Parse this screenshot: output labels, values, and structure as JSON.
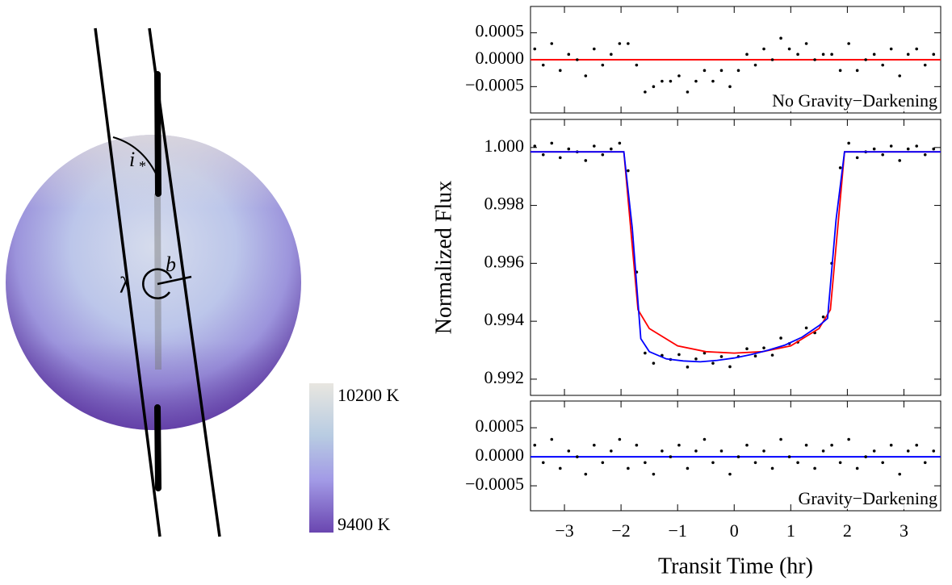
{
  "chart_data": [
    {
      "type": "scatter",
      "xlim": [
        -3.6,
        3.65
      ],
      "ylim": [
        -0.00099,
        0.00099
      ],
      "yticks": [
        0.0005,
        {
          "value": 0,
          "label": "0.0000"
        },
        {
          "value": -0.0005,
          "label": "−0.0005"
        }
      ],
      "annotation": "No Gravity−Darkening",
      "color": "#000000",
      "reference_line": {
        "value": 0,
        "color": "#ff0000"
      },
      "x": [
        -3.525,
        -3.375,
        -3.225,
        -3.075,
        -2.925,
        -2.775,
        -2.625,
        -2.475,
        -2.325,
        -2.175,
        -2.025,
        -1.875,
        -1.725,
        -1.575,
        -1.425,
        -1.275,
        -1.125,
        -0.975,
        -0.825,
        -0.675,
        -0.525,
        -0.375,
        -0.225,
        -0.075,
        0.075,
        0.225,
        0.375,
        0.525,
        0.675,
        0.825,
        0.975,
        1.125,
        1.275,
        1.425,
        1.575,
        1.725,
        1.875,
        2.025,
        2.175,
        2.325,
        2.475,
        2.625,
        2.775,
        2.925,
        3.075,
        3.225,
        3.375,
        3.525
      ],
      "values": [
        0.0002,
        -0.0001,
        0.0003,
        -0.0002,
        0.0001,
        0,
        -0.0003,
        0.0002,
        -0.0001,
        0.0001,
        0.0003,
        0.0003,
        -0.0001,
        -0.0006,
        -0.0005,
        -0.0004,
        -0.0004,
        -0.0003,
        -0.0006,
        -0.0004,
        -0.0002,
        -0.0004,
        -0.0002,
        -0.0005,
        -0.0002,
        0.0001,
        -0.0001,
        0.0002,
        0,
        0.0004,
        0.0002,
        0.0001,
        0.0003,
        0,
        0.0001,
        0.0001,
        -0.0002,
        0.0003,
        -0.0002,
        0,
        0.0001,
        -0.0001,
        0.0002,
        -0.0003,
        0.0001,
        0.0002,
        -0.0001,
        0.0001
      ]
    },
    {
      "type": "scatter",
      "xlim": [
        -3.6,
        3.65
      ],
      "ylim": [
        0.99144,
        1.00097
      ],
      "yticks": [
        {
          "value": 1,
          "label": "1.000"
        },
        0.998,
        0.996,
        0.994,
        0.992
      ],
      "y_label": "Normalized Flux",
      "color": "#000000",
      "x": [
        -3.525,
        -3.375,
        -3.225,
        -3.075,
        -2.925,
        -2.775,
        -2.625,
        -2.475,
        -2.325,
        -2.175,
        -2.025,
        -1.875,
        -1.725,
        -1.575,
        -1.425,
        -1.275,
        -1.125,
        -0.975,
        -0.825,
        -0.675,
        -0.525,
        -0.375,
        -0.225,
        -0.075,
        0.075,
        0.225,
        0.375,
        0.525,
        0.675,
        0.825,
        0.975,
        1.125,
        1.275,
        1.425,
        1.575,
        1.725,
        1.875,
        2.025,
        2.175,
        2.325,
        2.475,
        2.625,
        2.775,
        2.925,
        3.075,
        3.225,
        3.375,
        3.525
      ],
      "values": [
        1.00005,
        0.99975,
        1.00015,
        0.99965,
        0.99995,
        0.99985,
        0.99955,
        1.00005,
        0.99975,
        0.99995,
        1.00015,
        0.9992,
        0.9957,
        0.9929,
        0.99255,
        0.99282,
        0.99268,
        0.99285,
        0.99242,
        0.9927,
        0.9929,
        0.99255,
        0.99278,
        0.99243,
        0.99278,
        0.99305,
        0.9928,
        0.99308,
        0.99283,
        0.99342,
        0.99323,
        0.99328,
        0.99377,
        0.9936,
        0.99415,
        0.996,
        0.9993,
        1.00015,
        0.99965,
        0.99985,
        0.99995,
        0.99975,
        1.00005,
        0.99955,
        0.99995,
        1.00005,
        0.99975,
        0.99995
      ],
      "models": [
        {
          "color": "#ff0000",
          "x": [
            -3.6,
            -1.95,
            -1.7,
            -1.5,
            -1,
            -0.5,
            0,
            0.5,
            1,
            1.5,
            1.7,
            1.95,
            3.65
          ],
          "values": [
            0.99985,
            0.99985,
            0.9944,
            0.99375,
            0.99315,
            0.99295,
            0.9929,
            0.99295,
            0.99315,
            0.99375,
            0.9944,
            0.99985,
            0.99985
          ]
        },
        {
          "color": "#0000ff",
          "x": [
            -3.6,
            -1.95,
            -1.8,
            -1.65,
            -1.5,
            -1.2,
            -0.9,
            -0.6,
            -0.3,
            0,
            0.3,
            0.6,
            0.9,
            1.2,
            1.5,
            1.65,
            1.8,
            1.95,
            3.65
          ],
          "values": [
            0.99985,
            0.99985,
            0.9972,
            0.9934,
            0.99295,
            0.9927,
            0.99263,
            0.9926,
            0.99265,
            0.99273,
            0.99285,
            0.993,
            0.99318,
            0.99345,
            0.99385,
            0.9941,
            0.9975,
            0.99985,
            0.99985
          ]
        }
      ]
    },
    {
      "type": "scatter",
      "xlim": [
        -3.6,
        3.65
      ],
      "ylim": [
        -0.00093,
        0.00096
      ],
      "yticks": [
        0.0005,
        {
          "value": 0,
          "label": "0.0000"
        },
        {
          "value": -0.0005,
          "label": "−0.0005"
        }
      ],
      "xticks": [
        {
          "value": -3,
          "label": "−3"
        },
        {
          "value": -2,
          "label": "−2"
        },
        {
          "value": -1,
          "label": "−1"
        },
        0,
        1,
        2,
        3
      ],
      "x_label": "Transit Time (hr)",
      "annotation": "Gravity−Darkening",
      "color": "#000000",
      "reference_line": {
        "value": 0,
        "color": "#0000ff"
      },
      "x": [
        -3.525,
        -3.375,
        -3.225,
        -3.075,
        -2.925,
        -2.775,
        -2.625,
        -2.475,
        -2.325,
        -2.175,
        -2.025,
        -1.875,
        -1.725,
        -1.575,
        -1.425,
        -1.275,
        -1.125,
        -0.975,
        -0.825,
        -0.675,
        -0.525,
        -0.375,
        -0.225,
        -0.075,
        0.075,
        0.225,
        0.375,
        0.525,
        0.675,
        0.825,
        0.975,
        1.125,
        1.275,
        1.425,
        1.575,
        1.725,
        1.875,
        2.025,
        2.175,
        2.325,
        2.475,
        2.625,
        2.775,
        2.925,
        3.075,
        3.225,
        3.375,
        3.525
      ],
      "values": [
        0.0002,
        -0.0001,
        0.0003,
        -0.0002,
        0.0001,
        0,
        -0.0003,
        0.0002,
        -0.0001,
        0.0001,
        0.0003,
        -0.0002,
        0.0002,
        -0.0001,
        -0.0003,
        0.0001,
        0,
        0.0002,
        -0.0002,
        0.0001,
        0.0003,
        -0.0001,
        0.0001,
        -0.0003,
        0,
        0.0002,
        -0.0001,
        0.0001,
        -0.0002,
        0.0003,
        0,
        -0.0001,
        0.0002,
        -0.0002,
        0.0001,
        0.0002,
        -0.0001,
        0.0003,
        -0.0002,
        0,
        0.0001,
        -0.0001,
        0.0002,
        -0.0003,
        0.0001,
        0.0002,
        -0.0001,
        0.0001
      ]
    }
  ],
  "diagram": {
    "inclination_symbol": "i",
    "inclination_subscript": "*",
    "obliquity_symbol": "λ",
    "impact_symbol": "b"
  },
  "colorbar": {
    "top_label": "10200 K",
    "bottom_label": "9400 K"
  }
}
